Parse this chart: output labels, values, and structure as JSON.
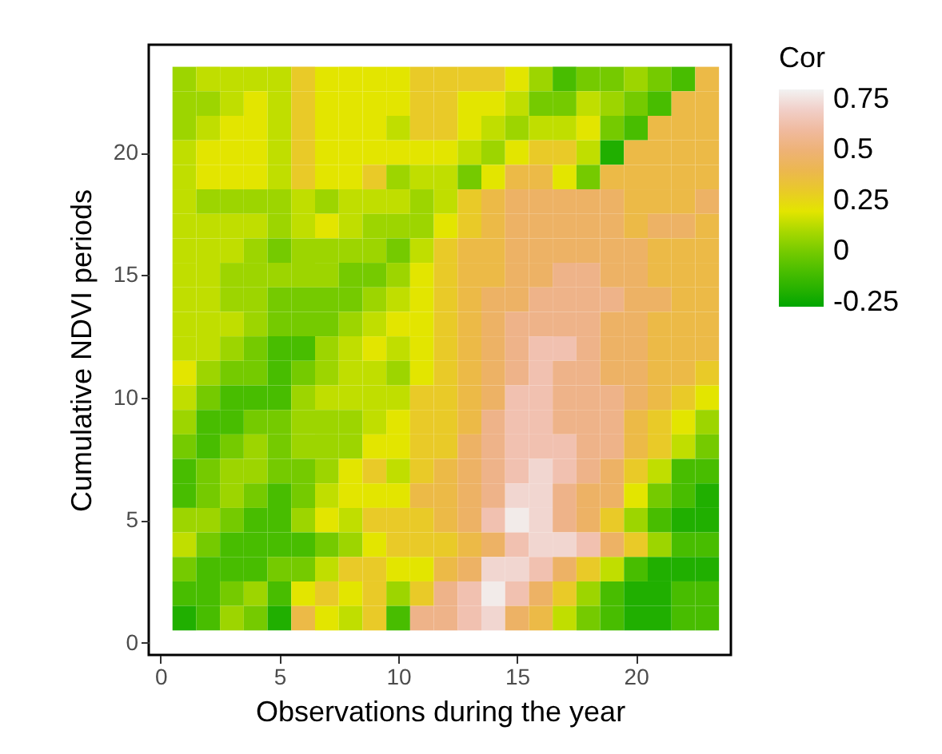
{
  "chart_data": {
    "type": "heatmap",
    "xlabel": "Observations during the year",
    "ylabel": "Cumulative NDVI periods",
    "clabel": "Cor",
    "grid": false,
    "x": [
      1,
      2,
      3,
      4,
      5,
      6,
      7,
      8,
      9,
      10,
      11,
      12,
      13,
      14,
      15,
      16,
      17,
      18,
      19,
      20,
      21,
      22,
      23
    ],
    "y": [
      23,
      22,
      21,
      20,
      19,
      18,
      17,
      16,
      15,
      14,
      13,
      12,
      11,
      10,
      9,
      8,
      7,
      6,
      5,
      4,
      3,
      2,
      1
    ],
    "xlim": [
      -0.5,
      24
    ],
    "xticks": [
      0,
      5,
      10,
      15,
      20
    ],
    "ylim": [
      -0.5,
      24.4
    ],
    "yticks": [
      0,
      5,
      10,
      15,
      20
    ],
    "clim": [
      -0.27,
      0.8
    ],
    "cticks": [
      -0.25,
      0,
      0.25,
      0.5,
      0.75
    ],
    "cells": [
      [
        0.08,
        0.14,
        0.14,
        0.14,
        0.14,
        0.3,
        0.2,
        0.2,
        0.2,
        0.2,
        0.3,
        0.3,
        0.3,
        0.3,
        0.2,
        0.08,
        -0.1,
        0,
        0,
        0.08,
        0,
        -0.1,
        0.38
      ],
      [
        0.08,
        0.08,
        0.14,
        0.2,
        0.14,
        0.3,
        0.2,
        0.2,
        0.2,
        0.2,
        0.3,
        0.3,
        0.2,
        0.2,
        0.14,
        0,
        0,
        0.14,
        0.08,
        0,
        -0.1,
        0.38,
        0.38
      ],
      [
        0.08,
        0.14,
        0.2,
        0.2,
        0.14,
        0.3,
        0.2,
        0.2,
        0.2,
        0.14,
        0.3,
        0.3,
        0.2,
        0.14,
        0.08,
        0.14,
        0.14,
        0.2,
        0,
        -0.1,
        0.38,
        0.38,
        0.38
      ],
      [
        0.14,
        0.2,
        0.2,
        0.2,
        0.14,
        0.3,
        0.2,
        0.2,
        0.2,
        0.2,
        0.2,
        0.2,
        0.14,
        0.08,
        0.2,
        0.3,
        0.3,
        0.14,
        -0.2,
        0.38,
        0.38,
        0.38,
        0.38
      ],
      [
        0.14,
        0.2,
        0.2,
        0.2,
        0.14,
        0.3,
        0.2,
        0.2,
        0.3,
        0.08,
        0.14,
        0.14,
        0,
        0.2,
        0.38,
        0.38,
        0.2,
        0,
        0.38,
        0.38,
        0.38,
        0.38,
        0.38
      ],
      [
        0.14,
        0.08,
        0.08,
        0.08,
        0.08,
        0.14,
        0.08,
        0.14,
        0.14,
        0.14,
        0.08,
        0.14,
        0.3,
        0.38,
        0.46,
        0.46,
        0.46,
        0.46,
        0.46,
        0.38,
        0.38,
        0.38,
        0.46
      ],
      [
        0.14,
        0.14,
        0.14,
        0.14,
        0.08,
        0.14,
        0.2,
        0.14,
        0.08,
        0.08,
        0.08,
        0.2,
        0.3,
        0.38,
        0.46,
        0.46,
        0.46,
        0.46,
        0.46,
        0.38,
        0.46,
        0.46,
        0.38
      ],
      [
        0.14,
        0.14,
        0.14,
        0.08,
        0,
        0.08,
        0.08,
        0.08,
        0.08,
        0,
        0.14,
        0.3,
        0.38,
        0.38,
        0.46,
        0.46,
        0.46,
        0.46,
        0.46,
        0.46,
        0.38,
        0.38,
        0.38
      ],
      [
        0.14,
        0.14,
        0.08,
        0.08,
        0.08,
        0.08,
        0.08,
        0,
        0,
        0.08,
        0.2,
        0.3,
        0.38,
        0.38,
        0.46,
        0.46,
        0.55,
        0.55,
        0.46,
        0.46,
        0.38,
        0.38,
        0.38
      ],
      [
        0.14,
        0.14,
        0.08,
        0.08,
        0,
        0,
        0,
        0,
        0.08,
        0.14,
        0.2,
        0.3,
        0.38,
        0.46,
        0.46,
        0.55,
        0.55,
        0.55,
        0.55,
        0.46,
        0.46,
        0.38,
        0.38
      ],
      [
        0.14,
        0.14,
        0.14,
        0.08,
        0,
        0,
        0,
        0.08,
        0.14,
        0.2,
        0.2,
        0.3,
        0.38,
        0.46,
        0.55,
        0.55,
        0.55,
        0.55,
        0.46,
        0.46,
        0.38,
        0.38,
        0.38
      ],
      [
        0.14,
        0.14,
        0.08,
        0,
        -0.1,
        -0.1,
        0.08,
        0.14,
        0.2,
        0.14,
        0.2,
        0.3,
        0.38,
        0.46,
        0.55,
        0.64,
        0.64,
        0.55,
        0.46,
        0.46,
        0.38,
        0.38,
        0.38
      ],
      [
        0.2,
        0.08,
        0,
        0,
        -0.1,
        0,
        0.08,
        0.14,
        0.14,
        0.08,
        0.2,
        0.3,
        0.38,
        0.46,
        0.55,
        0.64,
        0.55,
        0.55,
        0.46,
        0.46,
        0.38,
        0.38,
        0.3
      ],
      [
        0.14,
        0,
        -0.1,
        -0.1,
        -0.1,
        0.08,
        0.14,
        0.14,
        0.14,
        0.14,
        0.3,
        0.3,
        0.38,
        0.46,
        0.64,
        0.64,
        0.55,
        0.55,
        0.55,
        0.46,
        0.38,
        0.3,
        0.2
      ],
      [
        0.08,
        -0.1,
        -0.1,
        0,
        0,
        0.08,
        0.08,
        0.08,
        0.14,
        0.2,
        0.3,
        0.3,
        0.38,
        0.55,
        0.64,
        0.64,
        0.55,
        0.55,
        0.55,
        0.38,
        0.3,
        0.2,
        0.08
      ],
      [
        0,
        -0.1,
        0,
        0.08,
        0,
        0.08,
        0.08,
        0.08,
        0.2,
        0.2,
        0.3,
        0.3,
        0.46,
        0.55,
        0.64,
        0.64,
        0.64,
        0.55,
        0.55,
        0.38,
        0.3,
        0.14,
        0
      ],
      [
        -0.1,
        0,
        0.08,
        0.08,
        0,
        0,
        0.08,
        0.2,
        0.3,
        0.14,
        0.3,
        0.38,
        0.46,
        0.55,
        0.64,
        0.72,
        0.64,
        0.55,
        0.46,
        0.3,
        0.14,
        -0.1,
        -0.1
      ],
      [
        -0.1,
        0,
        0.08,
        0,
        -0.1,
        0,
        0.14,
        0.2,
        0.2,
        0.2,
        0.38,
        0.38,
        0.46,
        0.55,
        0.72,
        0.72,
        0.55,
        0.46,
        0.46,
        0.2,
        0,
        -0.1,
        -0.2
      ],
      [
        0.08,
        0.08,
        0,
        -0.1,
        -0.1,
        0.08,
        0.2,
        0.14,
        0.3,
        0.3,
        0.3,
        0.38,
        0.46,
        0.64,
        0.78,
        0.72,
        0.55,
        0.46,
        0.3,
        0.08,
        -0.1,
        -0.2,
        -0.2
      ],
      [
        0.14,
        0,
        -0.1,
        -0.1,
        -0.1,
        -0.1,
        0,
        0.08,
        0.2,
        0.3,
        0.3,
        0.3,
        0.38,
        0.46,
        0.64,
        0.72,
        0.72,
        0.64,
        0.46,
        0.3,
        0.08,
        -0.1,
        -0.1
      ],
      [
        0,
        -0.1,
        -0.1,
        -0.1,
        0,
        0,
        0.14,
        0.3,
        0.3,
        0.2,
        0.2,
        0.38,
        0.46,
        0.72,
        0.72,
        0.64,
        0.46,
        0.3,
        0.14,
        -0.1,
        -0.2,
        -0.2,
        -0.2
      ],
      [
        -0.1,
        -0.1,
        0,
        0.08,
        -0.1,
        0.2,
        0.3,
        0.2,
        0.3,
        0.08,
        0.3,
        0.55,
        0.64,
        0.78,
        0.64,
        0.46,
        0.3,
        0.08,
        -0.1,
        -0.2,
        -0.2,
        -0.1,
        -0.1
      ],
      [
        -0.2,
        -0.1,
        0.08,
        0,
        -0.2,
        0.38,
        0.2,
        0.14,
        0.3,
        -0.1,
        0.55,
        0.55,
        0.64,
        0.72,
        0.46,
        0.38,
        0.14,
        0,
        -0.1,
        -0.2,
        -0.2,
        -0.1,
        -0.1
      ]
    ]
  }
}
